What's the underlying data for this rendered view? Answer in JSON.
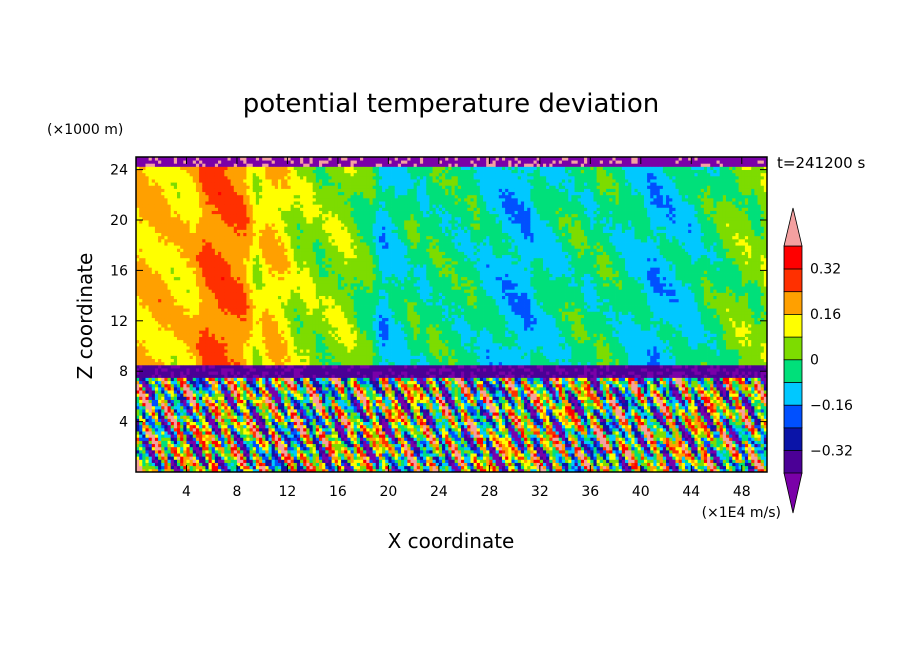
{
  "chart_data": {
    "type": "heatmap",
    "title": "potential temperature deviation",
    "xlabel": "X coordinate",
    "ylabel": "Z coordinate",
    "x_units": "(×1E4 m/s)",
    "y_units": "(×1000 m)",
    "time_label": "t=241200 s",
    "xlim": [
      0,
      50
    ],
    "ylim": [
      0,
      25
    ],
    "x_ticks": [
      4,
      8,
      12,
      16,
      20,
      24,
      28,
      32,
      36,
      40,
      44,
      48
    ],
    "y_ticks": [
      4,
      8,
      12,
      16,
      20,
      24
    ],
    "colorbar": {
      "levels": [
        -0.4,
        -0.32,
        -0.24,
        -0.16,
        -0.08,
        0,
        0.08,
        0.16,
        0.24,
        0.32,
        0.4
      ],
      "labels": [
        "0.32",
        "0.16",
        "0",
        "−0.16",
        "−0.32"
      ],
      "label_values": [
        0.32,
        0.16,
        0,
        -0.16,
        -0.32
      ],
      "colors": [
        "#7a00a8",
        "#4b0096",
        "#0a14a8",
        "#0050ff",
        "#00c8ff",
        "#00e07a",
        "#7ddc00",
        "#ffff00",
        "#ffa000",
        "#ff3000",
        "#ff0000",
        "#f4a0a0"
      ],
      "extend": "both"
    },
    "profile_x": [
      0,
      2,
      3.5,
      5,
      6.5,
      8,
      9.5,
      11,
      13,
      14.5,
      16,
      18,
      19.5,
      22,
      26,
      28,
      30,
      32,
      34,
      38,
      40,
      42,
      45,
      47,
      50
    ],
    "profile_upper": [
      0.14,
      0.18,
      0.12,
      0.2,
      0.26,
      0.24,
      0.12,
      0.16,
      0.06,
      0.04,
      0.06,
      0.02,
      -0.12,
      -0.04,
      -0.04,
      -0.08,
      -0.14,
      -0.1,
      -0.04,
      -0.04,
      -0.1,
      -0.12,
      -0.06,
      0.02,
      0.04
    ],
    "top_level": 24,
    "tropopause_level": 8.2
  }
}
